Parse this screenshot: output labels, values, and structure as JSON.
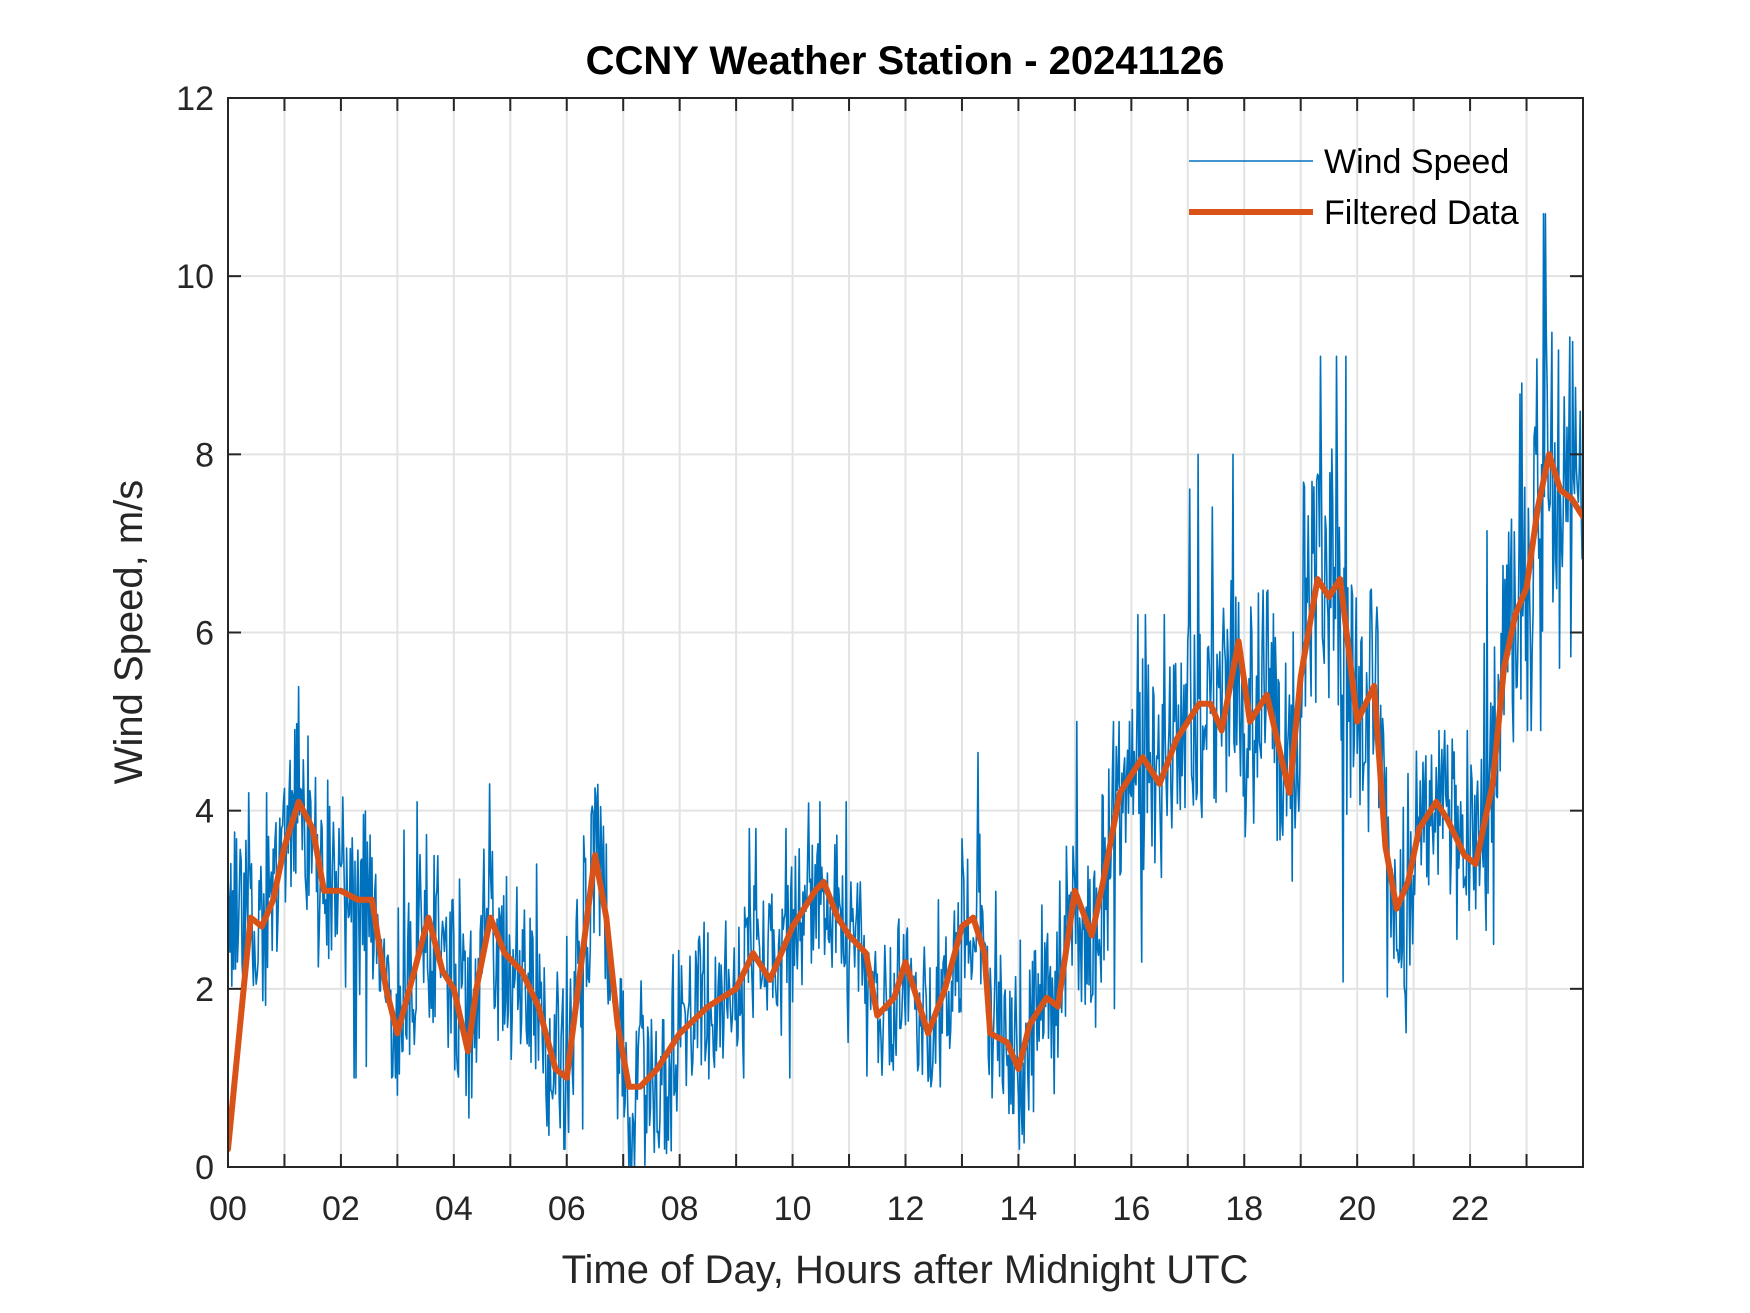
{
  "chart_data": {
    "type": "line",
    "title": "CCNY Weather Station - 20241126",
    "xlabel": "Time of Day, Hours after Midnight UTC",
    "ylabel": "Wind Speed, m/s",
    "xlim": [
      0,
      24
    ],
    "ylim": [
      0,
      12
    ],
    "grid": true,
    "legend_position": "top-right",
    "x_ticks": [
      0,
      2,
      4,
      6,
      8,
      10,
      12,
      14,
      16,
      18,
      20,
      22
    ],
    "x_tick_labels": [
      "00",
      "02",
      "04",
      "06",
      "08",
      "10",
      "12",
      "14",
      "16",
      "18",
      "20",
      "22"
    ],
    "x_minor_ticks_hourly": true,
    "y_ticks": [
      0,
      2,
      4,
      6,
      8,
      10,
      12
    ],
    "y_tick_labels": [
      "0",
      "2",
      "4",
      "6",
      "8",
      "10",
      "12"
    ],
    "series": [
      {
        "name": "Wind Speed",
        "color": "#0072BD",
        "style": "thin",
        "description": "raw 1-minute wind speed, noisy; approx per-hour min/max envelope",
        "hourly_envelope": [
          {
            "hour": 0,
            "min": 1.8,
            "max": 4.2
          },
          {
            "hour": 1,
            "min": 1.5,
            "max": 5.7
          },
          {
            "hour": 2,
            "min": 1.0,
            "max": 4.3
          },
          {
            "hour": 3,
            "min": 0.2,
            "max": 4.1
          },
          {
            "hour": 4,
            "min": 0.4,
            "max": 4.3
          },
          {
            "hour": 5,
            "min": 0.2,
            "max": 3.4
          },
          {
            "hour": 6,
            "min": 0.3,
            "max": 4.8
          },
          {
            "hour": 7,
            "min": 0.0,
            "max": 3.4
          },
          {
            "hour": 8,
            "min": 0.6,
            "max": 3.0
          },
          {
            "hour": 9,
            "min": 1.0,
            "max": 3.8
          },
          {
            "hour": 10,
            "min": 1.4,
            "max": 4.1
          },
          {
            "hour": 11,
            "min": 0.8,
            "max": 3.2
          },
          {
            "hour": 12,
            "min": 0.9,
            "max": 3.0
          },
          {
            "hour": 13,
            "min": 0.6,
            "max": 4.9
          },
          {
            "hour": 14,
            "min": 0.0,
            "max": 3.6
          },
          {
            "hour": 15,
            "min": 1.4,
            "max": 5.0
          },
          {
            "hour": 16,
            "min": 2.3,
            "max": 6.2
          },
          {
            "hour": 17,
            "min": 3.0,
            "max": 8.0
          },
          {
            "hour": 18,
            "min": 1.2,
            "max": 7.4
          },
          {
            "hour": 19,
            "min": 1.7,
            "max": 9.1
          },
          {
            "hour": 20,
            "min": 1.0,
            "max": 7.0
          },
          {
            "hour": 21,
            "min": 1.9,
            "max": 4.9
          },
          {
            "hour": 22,
            "min": 2.5,
            "max": 8.8
          },
          {
            "hour": 23,
            "min": 4.9,
            "max": 10.7
          }
        ],
        "noise_amplitude_by_hour": [
          1.0,
          1.1,
          1.0,
          1.2,
          1.2,
          1.1,
          1.2,
          1.1,
          0.9,
          0.9,
          0.9,
          0.9,
          0.9,
          1.0,
          1.1,
          1.2,
          1.3,
          1.4,
          1.6,
          1.8,
          1.6,
          1.0,
          1.4,
          1.9
        ],
        "peak_value": 10.7,
        "peak_hour": 23.3
      },
      {
        "name": "Filtered Data",
        "color": "#D95319",
        "style": "thick",
        "points": [
          [
            0.0,
            0.2
          ],
          [
            0.2,
            1.5
          ],
          [
            0.4,
            2.8
          ],
          [
            0.6,
            2.7
          ],
          [
            0.8,
            3.0
          ],
          [
            1.0,
            3.6
          ],
          [
            1.25,
            4.1
          ],
          [
            1.5,
            3.8
          ],
          [
            1.7,
            3.1
          ],
          [
            2.0,
            3.1
          ],
          [
            2.3,
            3.0
          ],
          [
            2.55,
            3.0
          ],
          [
            2.8,
            2.0
          ],
          [
            3.0,
            1.5
          ],
          [
            3.3,
            2.2
          ],
          [
            3.55,
            2.8
          ],
          [
            3.8,
            2.2
          ],
          [
            4.0,
            2.0
          ],
          [
            4.25,
            1.3
          ],
          [
            4.4,
            2.0
          ],
          [
            4.65,
            2.8
          ],
          [
            4.9,
            2.4
          ],
          [
            5.2,
            2.2
          ],
          [
            5.5,
            1.8
          ],
          [
            5.8,
            1.1
          ],
          [
            6.0,
            1.0
          ],
          [
            6.3,
            2.5
          ],
          [
            6.5,
            3.5
          ],
          [
            6.7,
            2.8
          ],
          [
            6.9,
            1.6
          ],
          [
            7.1,
            0.9
          ],
          [
            7.3,
            0.9
          ],
          [
            7.6,
            1.1
          ],
          [
            8.0,
            1.5
          ],
          [
            8.5,
            1.8
          ],
          [
            9.0,
            2.0
          ],
          [
            9.3,
            2.4
          ],
          [
            9.6,
            2.1
          ],
          [
            10.0,
            2.7
          ],
          [
            10.4,
            3.1
          ],
          [
            10.55,
            3.2
          ],
          [
            10.8,
            2.8
          ],
          [
            11.0,
            2.6
          ],
          [
            11.3,
            2.4
          ],
          [
            11.5,
            1.7
          ],
          [
            11.8,
            1.9
          ],
          [
            12.0,
            2.3
          ],
          [
            12.2,
            1.9
          ],
          [
            12.4,
            1.5
          ],
          [
            12.7,
            2.0
          ],
          [
            13.0,
            2.7
          ],
          [
            13.2,
            2.8
          ],
          [
            13.4,
            2.4
          ],
          [
            13.5,
            1.5
          ],
          [
            13.8,
            1.4
          ],
          [
            14.0,
            1.1
          ],
          [
            14.2,
            1.6
          ],
          [
            14.5,
            1.9
          ],
          [
            14.7,
            1.8
          ],
          [
            15.0,
            3.1
          ],
          [
            15.3,
            2.6
          ],
          [
            15.5,
            3.2
          ],
          [
            15.8,
            4.2
          ],
          [
            16.2,
            4.6
          ],
          [
            16.5,
            4.3
          ],
          [
            16.8,
            4.8
          ],
          [
            17.2,
            5.2
          ],
          [
            17.4,
            5.2
          ],
          [
            17.6,
            4.9
          ],
          [
            17.9,
            5.9
          ],
          [
            18.1,
            5.0
          ],
          [
            18.4,
            5.3
          ],
          [
            18.8,
            4.2
          ],
          [
            19.0,
            5.5
          ],
          [
            19.3,
            6.6
          ],
          [
            19.5,
            6.4
          ],
          [
            19.7,
            6.6
          ],
          [
            20.0,
            5.0
          ],
          [
            20.3,
            5.4
          ],
          [
            20.5,
            3.6
          ],
          [
            20.7,
            2.9
          ],
          [
            20.9,
            3.2
          ],
          [
            21.1,
            3.8
          ],
          [
            21.4,
            4.1
          ],
          [
            21.6,
            3.9
          ],
          [
            21.9,
            3.5
          ],
          [
            22.1,
            3.4
          ],
          [
            22.4,
            4.3
          ],
          [
            22.6,
            5.6
          ],
          [
            22.8,
            6.2
          ],
          [
            23.0,
            6.5
          ],
          [
            23.2,
            7.4
          ],
          [
            23.4,
            8.0
          ],
          [
            23.6,
            7.6
          ],
          [
            23.8,
            7.5
          ],
          [
            24.0,
            7.3
          ]
        ]
      }
    ]
  }
}
